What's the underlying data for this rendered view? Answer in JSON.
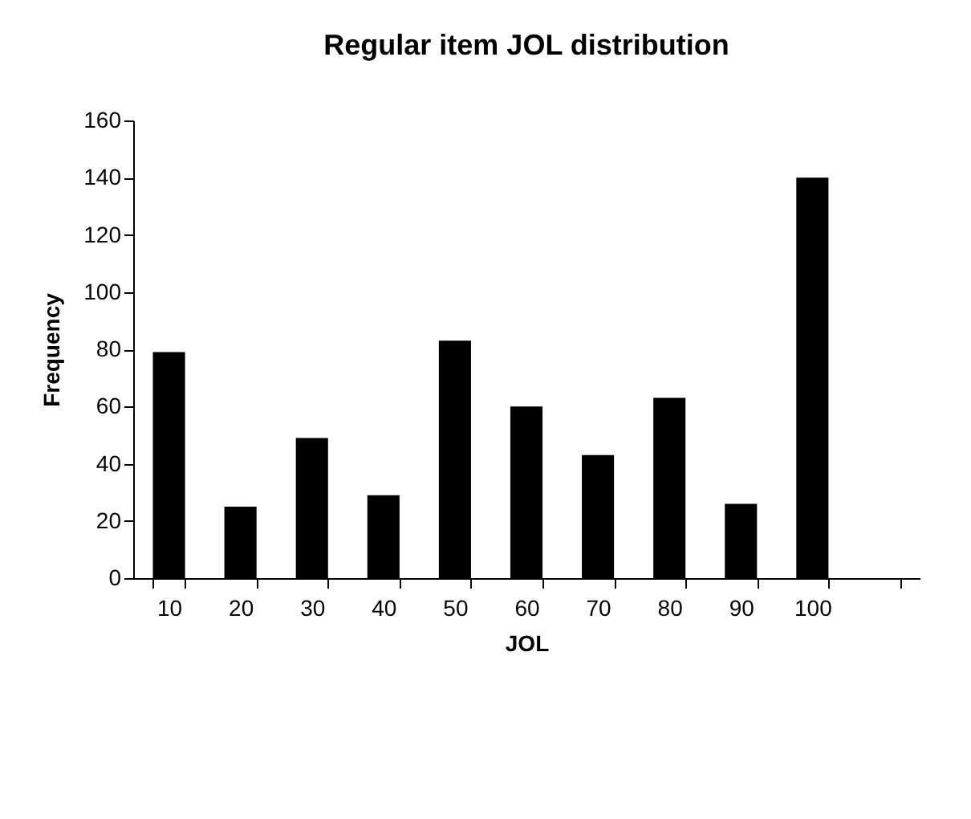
{
  "chart_data": {
    "type": "bar",
    "title": "Regular item JOL distribution",
    "xlabel": "JOL",
    "ylabel": "Frequency",
    "categories": [
      "10",
      "20",
      "30",
      "40",
      "50",
      "60",
      "70",
      "80",
      "90",
      "100",
      null
    ],
    "values": [
      79,
      25,
      49,
      29,
      83,
      60,
      43,
      63,
      26,
      140,
      null
    ],
    "color": "#000000",
    "ylim": [
      0,
      160
    ],
    "yticks": [
      0,
      20,
      40,
      60,
      80,
      100,
      120,
      140,
      160
    ],
    "grid": false
  }
}
